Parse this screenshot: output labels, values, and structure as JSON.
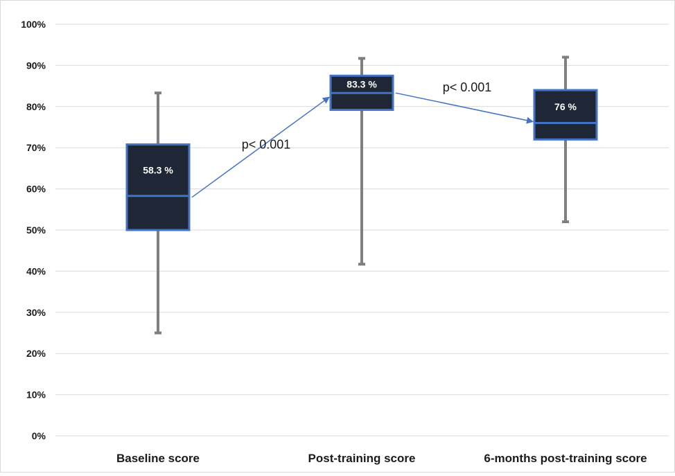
{
  "chart_data": {
    "type": "box",
    "title": "",
    "xlabel": "",
    "ylabel": "",
    "ylim": [
      0,
      100
    ],
    "y_ticks": [
      "0%",
      "10%",
      "20%",
      "30%",
      "40%",
      "50%",
      "60%",
      "70%",
      "80%",
      "90%",
      "100%"
    ],
    "grid": true,
    "legend": "none",
    "categories": [
      "Baseline score",
      "Post-training score",
      "6-months post-training score"
    ],
    "boxes": [
      {
        "category": "Baseline score",
        "min": 25,
        "q1": 50,
        "median": 58.3,
        "q3": 70.8,
        "max": 83.3,
        "median_label": "58.3 %"
      },
      {
        "category": "Post-training score",
        "min": 41.7,
        "q1": 79.2,
        "median": 83.3,
        "q3": 87.5,
        "max": 91.7,
        "median_label": "83.3 %"
      },
      {
        "category": "6-months post-training score",
        "min": 52,
        "q1": 72,
        "median": 76,
        "q3": 84,
        "max": 92,
        "median_label": "76 %"
      }
    ],
    "annotations": [
      {
        "text": "p< 0.001",
        "from": "Baseline score",
        "to": "Post-training score"
      },
      {
        "text": "p< 0.001",
        "from": "Post-training score",
        "to": "6-months post-training score"
      }
    ],
    "colors": {
      "box_fill": "#1f2635",
      "box_border": "#4472c4",
      "whisker": "#7f7f7f",
      "grid": "#d9d9d9",
      "arrow": "#4472c4"
    }
  }
}
